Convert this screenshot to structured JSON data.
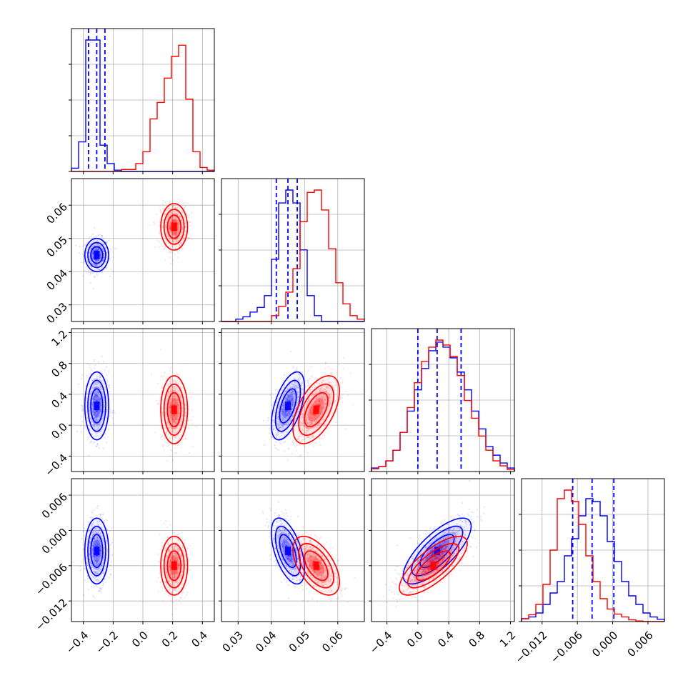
{
  "colors": {
    "blue": "#0000ff",
    "red": "#ff0000",
    "grid": "#b0b0b0",
    "frame": "#000000"
  },
  "chart_data": {
    "type": "corner",
    "grid": true,
    "params": [
      {
        "range": [
          -0.48,
          0.48
        ],
        "ticks": [
          "-0.4",
          "-0.2",
          "0.0",
          "0.2",
          "0.4"
        ],
        "tick_values": [
          -0.4,
          -0.2,
          0.0,
          0.2,
          0.4
        ]
      },
      {
        "range": [
          0.025,
          0.068
        ],
        "ticks": [
          "0.03",
          "0.04",
          "0.05",
          "0.06"
        ],
        "tick_values": [
          0.03,
          0.04,
          0.05,
          0.06
        ]
      },
      {
        "range": [
          -0.6,
          1.25
        ],
        "ticks": [
          "-0.4",
          "0.0",
          "0.4",
          "0.8",
          "1.2"
        ],
        "tick_values": [
          -0.4,
          0.0,
          0.4,
          0.8,
          1.2
        ]
      },
      {
        "range": [
          -0.0155,
          0.0088
        ],
        "ticks": [
          "-0.012",
          "-0.006",
          "0.000",
          "0.006"
        ],
        "tick_values": [
          -0.012,
          -0.006,
          0.0,
          0.006
        ]
      }
    ],
    "series": [
      {
        "color": "blue",
        "mean": [
          -0.31,
          0.045,
          0.25,
          -0.0035
        ],
        "sd": [
          0.04,
          0.0025,
          0.22,
          0.0028
        ],
        "corr": {
          "1-2": 0.55,
          "1-3": -0.55,
          "0-1": 0.0,
          "0-2": 0.0,
          "0-3": 0.0,
          "2-3": 0.75
        },
        "quantiles": [
          [
            -0.365,
            -0.31,
            -0.255
          ],
          [
            0.0415,
            0.045,
            0.0478
          ],
          [
            0.0,
            0.25,
            0.56
          ],
          [
            -0.0068,
            -0.0035,
            0.0002
          ]
        ],
        "hist": [
          [
            0.5,
            4.5,
            20,
            20,
            4.0,
            1.2,
            0.2,
            0,
            0,
            0,
            0,
            0,
            0,
            0,
            0,
            0,
            0,
            0,
            0,
            0
          ],
          [
            0,
            0,
            0.2,
            0.4,
            0.8,
            1.2,
            2.2,
            5.3,
            10.1,
            11.2,
            10.1,
            6.1,
            2.2,
            0.5,
            0,
            0,
            0,
            0,
            0,
            0
          ],
          [
            0.5,
            0.7,
            1.5,
            3,
            5.5,
            8.5,
            11.5,
            14.5,
            17,
            18.2,
            17.5,
            16,
            14,
            11.5,
            8.5,
            6,
            3.5,
            2.3,
            1.2,
            0.5
          ],
          [
            0.5,
            0.8,
            1.5,
            3,
            5,
            7,
            11.5,
            14.5,
            18.5,
            21.5,
            21,
            18.5,
            14,
            10.5,
            7,
            4.5,
            3,
            1.5,
            0.8,
            0.4
          ]
        ]
      },
      {
        "color": "red",
        "mean": [
          0.21,
          0.0535,
          0.2,
          -0.006
        ],
        "sd": [
          0.045,
          0.0035,
          0.22,
          0.0025
        ],
        "corr": {
          "1-2": 0.55,
          "1-3": -0.55,
          "0-1": 0.0,
          "0-2": 0.0,
          "0-3": 0.0,
          "2-3": 0.75
        },
        "quantiles": null,
        "hist": [
          [
            0,
            0,
            0,
            0,
            0,
            0,
            0,
            0.3,
            0.3,
            1.2,
            3,
            8,
            10.5,
            14.2,
            17.5,
            19.2,
            11,
            3,
            0.6,
            0.2
          ],
          [
            0,
            0,
            0,
            0,
            0,
            0,
            0,
            0.5,
            1.3,
            2.5,
            4.5,
            8.5,
            11.0,
            11.2,
            9.5,
            6.2,
            3.3,
            1.5,
            0.5,
            0.2
          ],
          [
            0.4,
            0.7,
            1.5,
            3,
            5.5,
            9,
            12.5,
            15.5,
            17.5,
            18.5,
            17.8,
            16.2,
            13.5,
            10,
            7.5,
            5,
            3,
            1.5,
            0.8,
            0.3
          ],
          [
            0.5,
            1.2,
            3,
            6.5,
            12.5,
            21.5,
            23,
            21,
            17,
            11.5,
            7,
            4,
            2.2,
            1.3,
            0.8,
            0.3,
            0.1,
            0,
            0,
            0
          ]
        ]
      }
    ]
  }
}
